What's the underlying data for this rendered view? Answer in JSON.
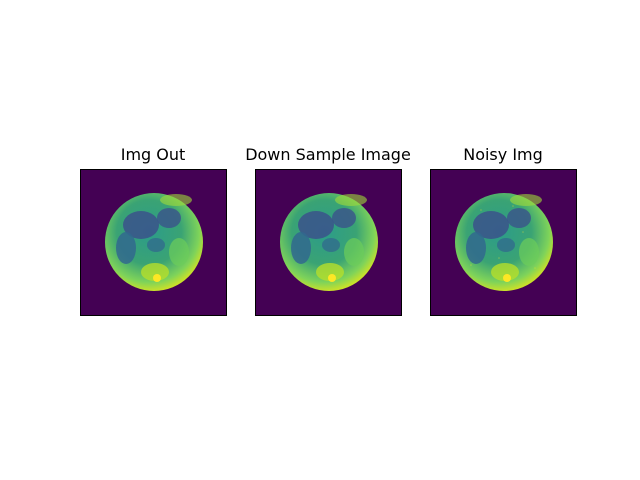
{
  "figure": {
    "panels": [
      {
        "title": "Img Out",
        "image": "moon-viridis"
      },
      {
        "title": "Down Sample Image",
        "image": "moon-viridis"
      },
      {
        "title": "Noisy Img",
        "image": "moon-viridis"
      }
    ],
    "colormap": "viridis",
    "colors": {
      "background": "#440154",
      "dark": "#3b528b",
      "mid": "#21918c",
      "light": "#5ec962",
      "bright": "#fde725"
    }
  }
}
